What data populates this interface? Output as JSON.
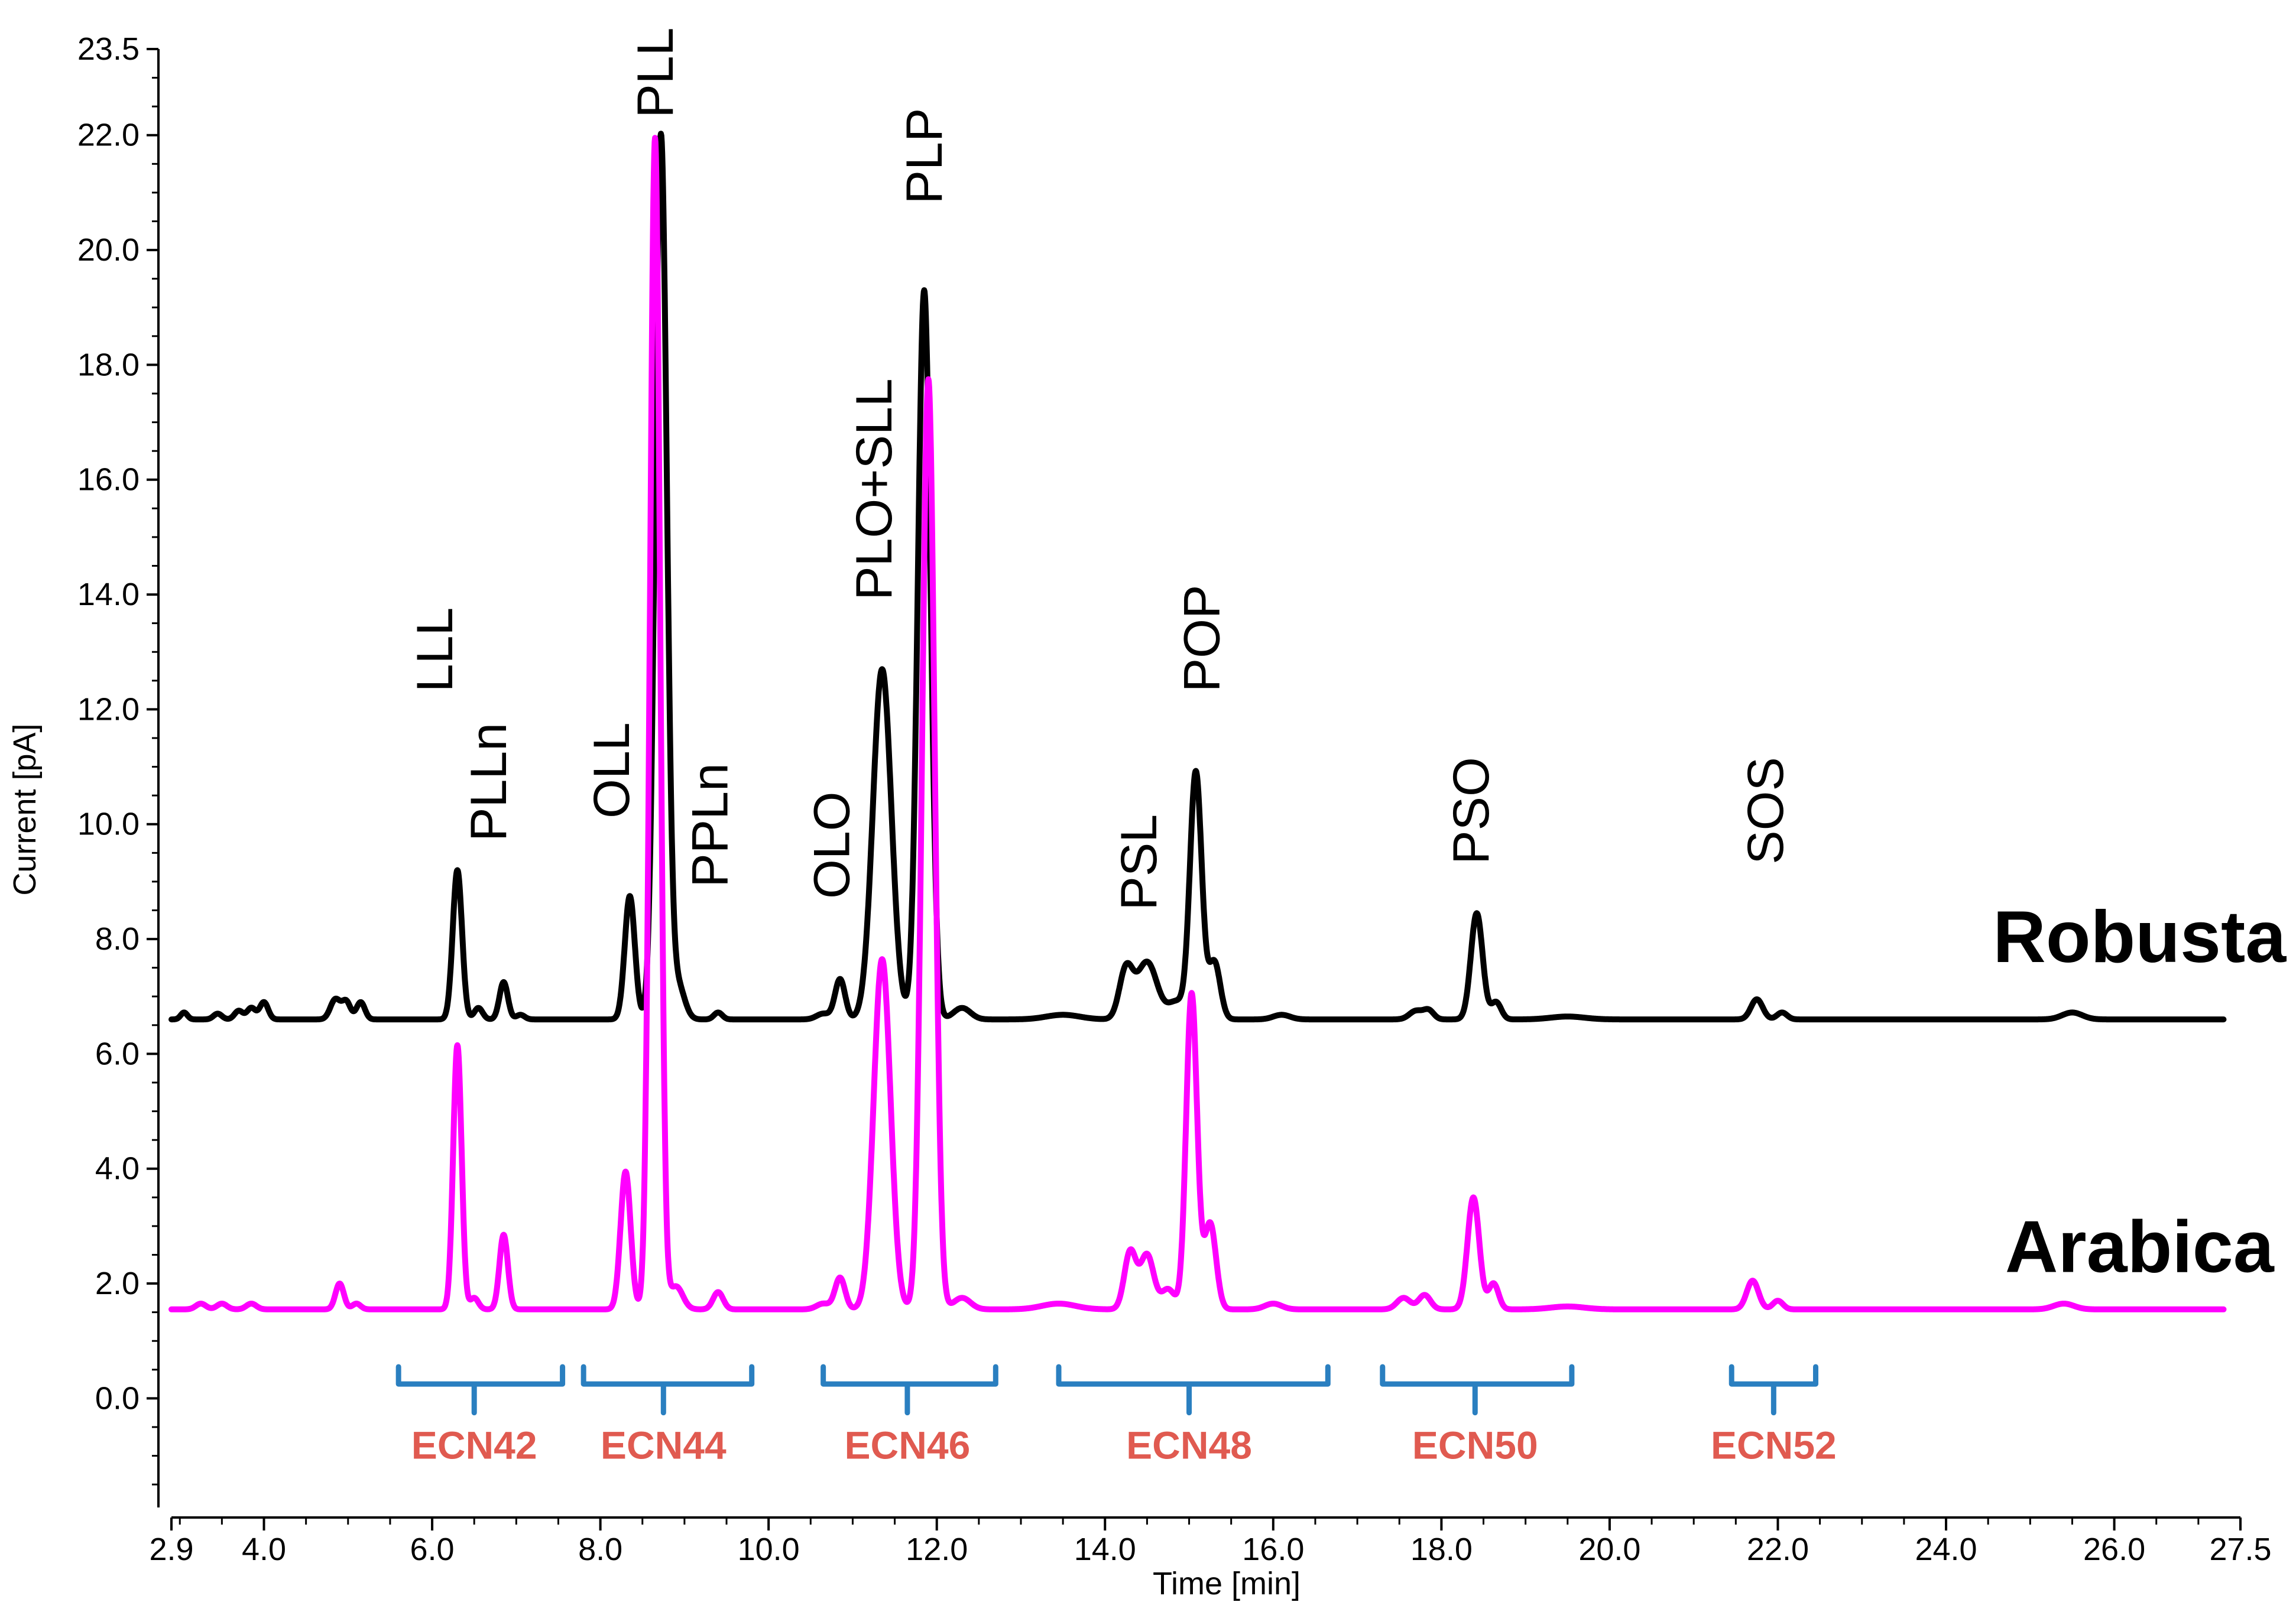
{
  "chart_data": {
    "type": "line",
    "xlabel": "Time [min]",
    "ylabel": "Current [pA]",
    "xlim": [
      2.9,
      27.5
    ],
    "ylim": [
      -1.9,
      23.5
    ],
    "x_ticks": [
      2.9,
      4.0,
      6.0,
      8.0,
      10.0,
      12.0,
      14.0,
      16.0,
      18.0,
      20.0,
      22.0,
      24.0,
      26.0,
      27.5
    ],
    "x_tick_labels": [
      "2.9",
      "4.0",
      "6.0",
      "8.0",
      "10.0",
      "12.0",
      "14.0",
      "16.0",
      "18.0",
      "20.0",
      "22.0",
      "24.0",
      "26.0",
      "27.5"
    ],
    "y_ticks": [
      0.0,
      2.0,
      4.0,
      6.0,
      8.0,
      10.0,
      12.0,
      14.0,
      16.0,
      18.0,
      20.0,
      22.0,
      23.5
    ],
    "y_tick_labels": [
      "0.0",
      "2.0",
      "4.0",
      "6.0",
      "8.0",
      "10.0",
      "12.0",
      "14.0",
      "16.0",
      "18.0",
      "20.0",
      "22.0",
      "23.5"
    ],
    "grid": false,
    "series": [
      {
        "name": "Robusta",
        "color": "#000000",
        "baseline": 6.6,
        "peaks": [
          [
            3.05,
            0.12,
            0.04
          ],
          [
            3.45,
            0.1,
            0.05
          ],
          [
            3.7,
            0.15,
            0.05
          ],
          [
            3.85,
            0.2,
            0.05
          ],
          [
            4.0,
            0.3,
            0.05
          ],
          [
            4.85,
            0.35,
            0.06
          ],
          [
            4.98,
            0.3,
            0.05
          ],
          [
            5.15,
            0.3,
            0.05
          ],
          [
            6.3,
            2.6,
            0.055
          ],
          [
            6.55,
            0.2,
            0.05
          ],
          [
            6.85,
            0.65,
            0.05
          ],
          [
            7.05,
            0.08,
            0.05
          ],
          [
            8.35,
            2.15,
            0.06
          ],
          [
            8.72,
            15.4,
            0.07
          ],
          [
            8.92,
            0.6,
            0.08
          ],
          [
            9.4,
            0.12,
            0.05
          ],
          [
            10.65,
            0.1,
            0.08
          ],
          [
            10.85,
            0.7,
            0.06
          ],
          [
            11.35,
            6.1,
            0.11
          ],
          [
            11.85,
            12.7,
            0.075
          ],
          [
            12.3,
            0.2,
            0.1
          ],
          [
            13.5,
            0.08,
            0.2
          ],
          [
            14.25,
            0.85,
            0.08
          ],
          [
            14.5,
            1.0,
            0.12
          ],
          [
            14.85,
            0.3,
            0.1
          ],
          [
            15.08,
            4.3,
            0.07
          ],
          [
            15.3,
            1.0,
            0.07
          ],
          [
            16.1,
            0.08,
            0.1
          ],
          [
            17.7,
            0.15,
            0.08
          ],
          [
            17.85,
            0.15,
            0.06
          ],
          [
            18.42,
            1.85,
            0.07
          ],
          [
            18.65,
            0.3,
            0.06
          ],
          [
            19.5,
            0.05,
            0.2
          ],
          [
            21.75,
            0.35,
            0.07
          ],
          [
            22.05,
            0.12,
            0.06
          ],
          [
            25.5,
            0.12,
            0.12
          ]
        ]
      },
      {
        "name": "Arabica",
        "color": "#ff00ff",
        "baseline": 1.55,
        "peaks": [
          [
            3.25,
            0.1,
            0.06
          ],
          [
            3.5,
            0.1,
            0.06
          ],
          [
            3.85,
            0.1,
            0.06
          ],
          [
            4.9,
            0.45,
            0.05
          ],
          [
            5.1,
            0.1,
            0.05
          ],
          [
            6.3,
            4.6,
            0.05
          ],
          [
            6.5,
            0.2,
            0.05
          ],
          [
            6.85,
            1.3,
            0.05
          ],
          [
            8.3,
            2.4,
            0.06
          ],
          [
            8.65,
            20.4,
            0.06
          ],
          [
            8.9,
            0.4,
            0.08
          ],
          [
            9.4,
            0.3,
            0.06
          ],
          [
            10.65,
            0.1,
            0.08
          ],
          [
            10.85,
            0.55,
            0.06
          ],
          [
            11.35,
            6.1,
            0.1
          ],
          [
            11.9,
            16.2,
            0.075
          ],
          [
            12.3,
            0.2,
            0.1
          ],
          [
            13.45,
            0.1,
            0.2
          ],
          [
            14.3,
            1.0,
            0.07
          ],
          [
            14.5,
            0.95,
            0.08
          ],
          [
            14.75,
            0.35,
            0.08
          ],
          [
            15.03,
            5.5,
            0.065
          ],
          [
            15.25,
            1.5,
            0.07
          ],
          [
            16.0,
            0.1,
            0.1
          ],
          [
            17.55,
            0.2,
            0.08
          ],
          [
            17.8,
            0.25,
            0.07
          ],
          [
            18.38,
            1.95,
            0.07
          ],
          [
            18.62,
            0.45,
            0.06
          ],
          [
            19.5,
            0.05,
            0.2
          ],
          [
            21.7,
            0.5,
            0.07
          ],
          [
            22.0,
            0.15,
            0.06
          ],
          [
            25.4,
            0.1,
            0.12
          ]
        ]
      }
    ],
    "peak_labels": [
      {
        "text": "LLL",
        "x": 6.08,
        "y": 12.3
      },
      {
        "text": "PLLn",
        "x": 6.72,
        "y": 9.7
      },
      {
        "text": "OLL",
        "x": 8.18,
        "y": 10.1
      },
      {
        "text": "PLL",
        "x": 8.7,
        "y": 22.3
      },
      {
        "text": "PPLn",
        "x": 9.35,
        "y": 8.9
      },
      {
        "text": "OLO",
        "x": 10.8,
        "y": 8.7
      },
      {
        "text": "PLO+SLL",
        "x": 11.3,
        "y": 13.9
      },
      {
        "text": "PLP",
        "x": 11.9,
        "y": 20.8
      },
      {
        "text": "PSL",
        "x": 14.45,
        "y": 8.5
      },
      {
        "text": "POP",
        "x": 15.2,
        "y": 12.3
      },
      {
        "text": "PSO",
        "x": 18.4,
        "y": 9.3
      },
      {
        "text": "SOS",
        "x": 21.9,
        "y": 9.3
      }
    ],
    "trace_labels": [
      {
        "text": "Robusta",
        "x": 26.3,
        "y": 7.6
      },
      {
        "text": "Arabica",
        "x": 26.3,
        "y": 2.2
      }
    ],
    "ecn_groups": [
      {
        "label": "ECN42",
        "start": 5.6,
        "end": 7.55,
        "center": 6.5
      },
      {
        "label": "ECN44",
        "start": 7.8,
        "end": 9.8,
        "center": 8.75
      },
      {
        "label": "ECN46",
        "start": 10.65,
        "end": 12.7,
        "center": 11.65
      },
      {
        "label": "ECN48",
        "start": 13.45,
        "end": 16.65,
        "center": 15.0
      },
      {
        "label": "ECN50",
        "start": 17.3,
        "end": 19.55,
        "center": 18.4
      },
      {
        "label": "ECN52",
        "start": 21.45,
        "end": 22.45,
        "center": 21.95
      }
    ],
    "bracket_color": "#2a7fc0",
    "ecn_label_color": "#e05a50"
  }
}
